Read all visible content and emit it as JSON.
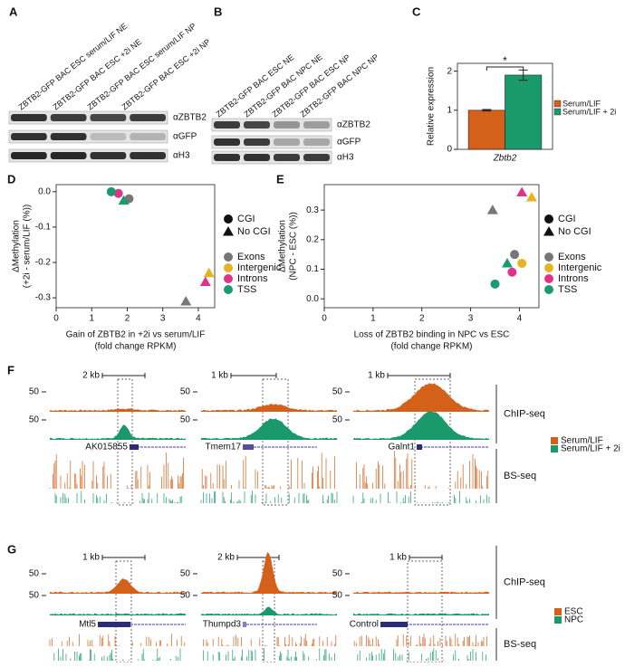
{
  "panels": {
    "A": {
      "letter": "A",
      "lanes": [
        "ZBTB2-GFP BAC ESC serum/LIF NE",
        "ZBTB2-GFP BAC ESC +2i NE",
        "ZBTB2-GFP BAC ESC serum/LIF NP",
        "ZBTB2-GFP BAC ESC +2i NP"
      ],
      "antibodies": [
        "αZBTB2",
        "αGFP",
        "αH3"
      ]
    },
    "B": {
      "letter": "B",
      "lanes": [
        "ZBTB2-GFP BAC ESC NE",
        "ZBTB2-GFP BAC NPC NE",
        "ZBTB2-GFP BAC ESC NP",
        "ZBTB2-GFP BAC NPC NP"
      ],
      "antibodies": [
        "αZBTB2",
        "αGFP",
        "αH3"
      ]
    },
    "F": {
      "letter": "F",
      "y_tick": 50,
      "loci": [
        {
          "scale": "2 kb",
          "gene": "AK015855"
        },
        {
          "scale": "1 kb",
          "gene": "Tmem17"
        },
        {
          "scale": "1 kb",
          "gene": "Galnt1"
        }
      ],
      "assays": [
        "ChIP-seq",
        "BS-seq"
      ],
      "legend": [
        {
          "label": "Serum/LIF",
          "color": "#d4601a"
        },
        {
          "label": "Serum/LIF + 2i",
          "color": "#1a9a6c"
        }
      ]
    },
    "G": {
      "letter": "G",
      "y_tick": 50,
      "loci": [
        {
          "scale": "1 kb",
          "gene": "Mtl5"
        },
        {
          "scale": "2 kb",
          "gene": "Thumpd3"
        },
        {
          "scale": "1 kb",
          "gene": "Control"
        }
      ],
      "assays": [
        "ChIP-seq",
        "BS-seq"
      ],
      "legend": [
        {
          "label": "ESC",
          "color": "#d4601a"
        },
        {
          "label": "NPC",
          "color": "#1a9a6c"
        }
      ]
    }
  },
  "chart_data": [
    {
      "type": "bar",
      "panel_label": "C",
      "y_label": [
        "Relative expression"
      ],
      "categories": [
        "Zbtb2"
      ],
      "series": [
        {
          "name": "Serum/LIF",
          "color": "#d4601a",
          "values": [
            1.0
          ],
          "errors": [
            0.02
          ]
        },
        {
          "name": "Serum/LIF + 2i",
          "color": "#1a9a6c",
          "values": [
            1.9
          ],
          "errors": [
            0.13
          ]
        }
      ],
      "annotation": "*",
      "ylim": [
        0,
        2.2
      ],
      "yticks": [
        0,
        1,
        2
      ]
    },
    {
      "type": "scatter",
      "panel_label": "D",
      "y_label": [
        "ΔMethylation",
        "(+2i - serum/LIF (%))"
      ],
      "x_label": [
        "Gain of ZBTB2 in +2i vs serum/LIF",
        "(fold change RPKM)"
      ],
      "markers": [
        {
          "label": "CGI",
          "marker": "circle"
        },
        {
          "label": "No CGI",
          "marker": "triangle"
        }
      ],
      "series": [
        {
          "name": "Exons",
          "color": "#777777",
          "x": [
            2.05,
            3.65
          ],
          "values": [
            -0.02,
            -0.31
          ]
        },
        {
          "name": "Intergenic",
          "color": "#e6b422",
          "x": [
            null,
            4.3
          ],
          "values": [
            null,
            -0.23
          ]
        },
        {
          "name": "Introns",
          "color": "#e0338a",
          "x": [
            1.75,
            4.2
          ],
          "values": [
            -0.005,
            -0.255
          ]
        },
        {
          "name": "TSS",
          "color": "#1a9a74",
          "x": [
            1.55,
            1.9
          ],
          "values": [
            0.0,
            -0.025
          ]
        }
      ],
      "xlim": [
        0,
        4.46
      ],
      "xticks": [
        0,
        1,
        2,
        3,
        4
      ],
      "ylim": [
        -0.328,
        0.02
      ],
      "yticks": [
        {
          "value": 0,
          "label": "0.0"
        },
        -0.1,
        -0.2,
        -0.3
      ]
    },
    {
      "type": "scatter",
      "panel_label": "E",
      "y_label": [
        "ΔMethylation",
        "(NPC - ESC (%))"
      ],
      "x_label": [
        "Loss of ZBTB2 binding in NPC vs ESC",
        "(fold change RPKM)"
      ],
      "markers": [
        {
          "label": "CGI",
          "marker": "circle"
        },
        {
          "label": "No CGI",
          "marker": "triangle"
        }
      ],
      "series": [
        {
          "name": "Exons",
          "color": "#777777",
          "x": [
            3.9,
            3.45
          ],
          "values": [
            0.15,
            0.3
          ]
        },
        {
          "name": "Intergenic",
          "color": "#e6b422",
          "x": [
            4.05,
            4.25
          ],
          "values": [
            0.12,
            0.343
          ]
        },
        {
          "name": "Introns",
          "color": "#e0338a",
          "x": [
            3.85,
            4.05
          ],
          "values": [
            0.09,
            0.36
          ]
        },
        {
          "name": "TSS",
          "color": "#1a9a74",
          "x": [
            3.5,
            3.75
          ],
          "values": [
            0.05,
            0.12
          ]
        }
      ],
      "xlim": [
        0,
        4.4
      ],
      "xticks": [
        0,
        1,
        2,
        3,
        4
      ],
      "ylim": [
        -0.03,
        0.386
      ],
      "yticks": [
        {
          "value": 0,
          "label": "0.0"
        },
        0.1,
        0.2,
        0.3
      ]
    }
  ]
}
